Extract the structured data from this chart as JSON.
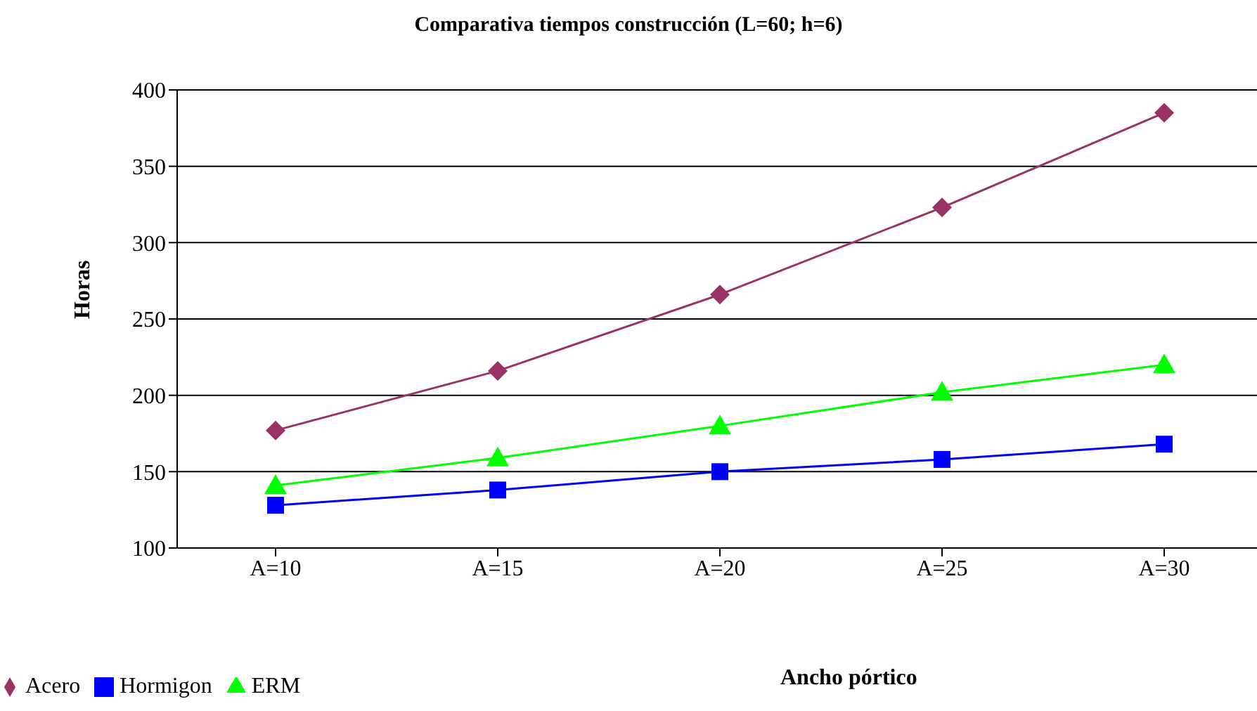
{
  "chart_data": {
    "type": "line",
    "title": "Comparativa tiempos construcción (L=60; h=6)",
    "xlabel": "Ancho pórtico",
    "ylabel": "Horas",
    "categories": [
      "A=10",
      "A=15",
      "A=20",
      "A=25",
      "A=30"
    ],
    "series": [
      {
        "name": "Acero",
        "color": "#993366",
        "marker": "diamond",
        "values": [
          177,
          216,
          266,
          323,
          385
        ]
      },
      {
        "name": "Hormigon",
        "color": "#0000ff",
        "marker": "square",
        "values": [
          128,
          138,
          150,
          158,
          168
        ]
      },
      {
        "name": "ERM",
        "color": "#00ff00",
        "marker": "triangle",
        "values": [
          141,
          159,
          180,
          202,
          220
        ]
      }
    ],
    "ylim": [
      100,
      400
    ],
    "yticks": [
      100,
      150,
      200,
      250,
      300,
      350,
      400
    ],
    "grid": "y",
    "legend": "bottom left",
    "line_style": "solid"
  }
}
